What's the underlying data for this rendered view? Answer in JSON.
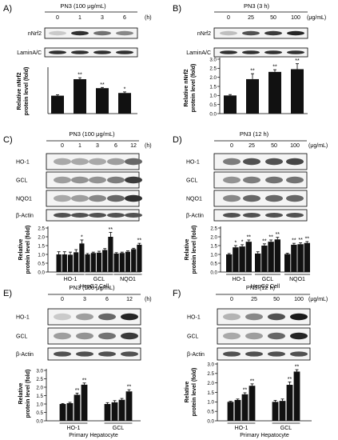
{
  "panels": [
    {
      "letter": "A)",
      "treatment": "PN3 (100 μg/mL)",
      "dose_labels": [
        "0",
        "1",
        "3",
        "6"
      ],
      "unit": "(h)",
      "blots": [
        "nNrf2",
        "LaminA/C"
      ],
      "ylabel": [
        "Relative nNrf2",
        "protein level (fold)"
      ]
    },
    {
      "letter": "B)",
      "treatment": "PN3 (3 h)",
      "dose_labels": [
        "0",
        "25",
        "50",
        "100"
      ],
      "unit": "(μg/mL)",
      "blots": [
        "nNrf2",
        "LaminA/C"
      ],
      "ylabel": [
        "Relative nNrf2",
        "protein level (fold)"
      ]
    },
    {
      "letter": "C)",
      "treatment": "PN3 (100 μg/mL)",
      "dose_labels": [
        "0",
        "1",
        "3",
        "6",
        "12"
      ],
      "unit": "(h)",
      "blots": [
        "HO-1",
        "GCL",
        "NQO1",
        "β-Actin"
      ],
      "ylabel": [
        "Relative",
        "protein level (fold)"
      ]
    },
    {
      "letter": "D)",
      "treatment": "PN3 (12 h)",
      "dose_labels": [
        "0",
        "25",
        "50",
        "100"
      ],
      "unit": "(μg/mL)",
      "blots": [
        "HO-1",
        "GCL",
        "NQO1",
        "β-Actin"
      ],
      "ylabel": [
        "Relative",
        "protein level (fold)"
      ]
    },
    {
      "letter": "E)",
      "treatment": "PN3 (100 μg/mL)",
      "dose_labels": [
        "0",
        "3",
        "6",
        "12"
      ],
      "unit": "(h)",
      "blots": [
        "HO-1",
        "GCL",
        "β-Actin"
      ],
      "ylabel": [
        "Relative",
        "protein level (fold)"
      ]
    },
    {
      "letter": "F)",
      "treatment": "PN3 (12 h)",
      "dose_labels": [
        "0",
        "25",
        "50",
        "100"
      ],
      "unit": "(μg/mL)",
      "blots": [
        "HO-1",
        "GCL",
        "β-Actin"
      ],
      "ylabel": [
        "Relative",
        "protein level (fold)"
      ]
    }
  ],
  "chart_data": [
    {
      "panel": "A",
      "type": "bar",
      "categories": [
        "0",
        "1",
        "3",
        "6"
      ],
      "values": [
        1.0,
        1.92,
        1.42,
        1.15
      ],
      "errors": [
        0.05,
        0.08,
        0.04,
        0.06
      ],
      "significance": [
        "",
        "**",
        "**",
        "*"
      ],
      "yticks": [],
      "ylim": [
        0,
        2.5
      ]
    },
    {
      "panel": "B",
      "type": "bar",
      "categories": [
        "0",
        "25",
        "50",
        "100"
      ],
      "values": [
        1.0,
        1.9,
        2.3,
        2.45
      ],
      "errors": [
        0.05,
        0.3,
        0.12,
        0.3
      ],
      "significance": [
        "",
        "**",
        "**",
        "**"
      ],
      "yticks": [
        0.0,
        0.5,
        1.0,
        1.5,
        2.0,
        2.5,
        3.0
      ],
      "ylim": [
        0,
        3.0
      ]
    },
    {
      "panel": "C",
      "type": "bar",
      "group_labels": [
        "HO-1",
        "GCL",
        "NQO1"
      ],
      "series": [
        {
          "values": [
            1.0,
            1.0,
            1.05
          ]
        },
        {
          "values": [
            1.0,
            1.08,
            1.08
          ]
        },
        {
          "values": [
            0.98,
            1.1,
            1.15
          ]
        },
        {
          "values": [
            1.12,
            1.25,
            1.3
          ]
        },
        {
          "values": [
            1.62,
            2.0,
            1.55
          ]
        }
      ],
      "errors": [
        [
          0.15,
          0.05,
          0.05
        ],
        [
          0.15,
          0.05,
          0.05
        ],
        [
          0.15,
          0.08,
          0.05
        ],
        [
          0.15,
          0.08,
          0.05
        ],
        [
          0.2,
          0.25,
          0.08
        ]
      ],
      "significance": [
        [
          "",
          "",
          ""
        ],
        [
          "",
          "",
          ""
        ],
        [
          "",
          "",
          ""
        ],
        [
          "",
          "",
          ""
        ],
        [
          "*",
          "**",
          "**"
        ]
      ],
      "yticks": [
        0.0,
        0.5,
        1.0,
        1.5,
        2.0,
        2.5
      ],
      "ylim": [
        0,
        2.5
      ],
      "xlabel": "HepG2 Cell"
    },
    {
      "panel": "D",
      "type": "bar",
      "group_labels": [
        "HO-1",
        "GCL",
        "NQO1"
      ],
      "series": [
        {
          "values": [
            1.0,
            1.05,
            1.02
          ]
        },
        {
          "values": [
            1.4,
            1.5,
            1.55
          ]
        },
        {
          "values": [
            1.45,
            1.72,
            1.58
          ]
        },
        {
          "values": [
            1.72,
            1.85,
            1.65
          ]
        }
      ],
      "errors": [
        [
          0.05,
          0.1,
          0.05
        ],
        [
          0.1,
          0.1,
          0.08
        ],
        [
          0.1,
          0.1,
          0.08
        ],
        [
          0.1,
          0.12,
          0.08
        ]
      ],
      "significance": [
        [
          "",
          "",
          ""
        ],
        [
          "*",
          "**",
          "**"
        ],
        [
          "*",
          "**",
          "**"
        ],
        [
          "**",
          "**",
          "**"
        ]
      ],
      "yticks": [
        0.0,
        0.5,
        1.0,
        1.5,
        2.0,
        2.5
      ],
      "ylim": [
        0,
        2.5
      ],
      "xlabel": "HepG2 Cell"
    },
    {
      "panel": "E",
      "type": "bar",
      "group_labels": [
        "HO-1",
        "GCL"
      ],
      "series": [
        {
          "values": [
            1.0,
            1.0
          ]
        },
        {
          "values": [
            1.05,
            1.1
          ]
        },
        {
          "values": [
            1.55,
            1.25
          ]
        },
        {
          "values": [
            2.15,
            1.75
          ]
        }
      ],
      "errors": [
        [
          0.03,
          0.08
        ],
        [
          0.05,
          0.1
        ],
        [
          0.1,
          0.08
        ],
        [
          0.1,
          0.1
        ]
      ],
      "significance": [
        [
          "",
          ""
        ],
        [
          "",
          ""
        ],
        [
          "**",
          ""
        ],
        [
          "**",
          "**"
        ]
      ],
      "yticks": [
        0.0,
        0.5,
        1.0,
        1.5,
        2.0,
        2.5,
        3.0
      ],
      "ylim": [
        0,
        3.0
      ],
      "xlabel": "Primary Hepatocyte"
    },
    {
      "panel": "F",
      "type": "bar",
      "group_labels": [
        "HO-1",
        "GCL"
      ],
      "series": [
        {
          "values": [
            1.0,
            1.0
          ]
        },
        {
          "values": [
            1.1,
            1.05
          ]
        },
        {
          "values": [
            1.4,
            1.9
          ]
        },
        {
          "values": [
            1.85,
            2.6
          ]
        }
      ],
      "errors": [
        [
          0.03,
          0.08
        ],
        [
          0.05,
          0.1
        ],
        [
          0.08,
          0.15
        ],
        [
          0.1,
          0.1
        ]
      ],
      "significance": [
        [
          "",
          ""
        ],
        [
          "",
          ""
        ],
        [
          "**",
          "**"
        ],
        [
          "**",
          "**"
        ]
      ],
      "yticks": [
        0.0,
        0.5,
        1.0,
        1.5,
        2.0,
        2.5,
        3.0
      ],
      "ylim": [
        0,
        3.0
      ],
      "xlabel": "Primary Hepatocyte"
    }
  ]
}
